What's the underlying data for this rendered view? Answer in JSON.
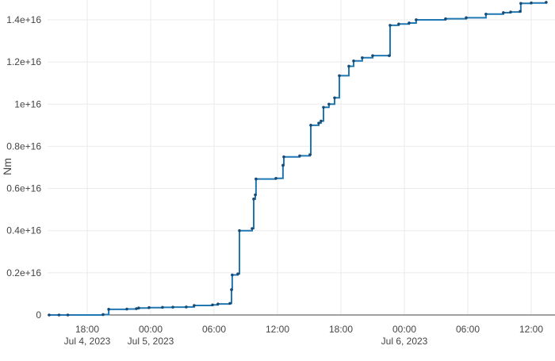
{
  "chart_data": {
    "type": "line",
    "title": "",
    "xlabel": "",
    "ylabel": "Nm",
    "xlim": [
      "2023-07-04T14:15",
      "2023-07-06T14:15"
    ],
    "ylim": [
      0,
      1.494e+16
    ],
    "grid": true,
    "line_shape": "step-after",
    "markers": true,
    "colors": {
      "line": "#1f77b4",
      "marker": "#1a4a72",
      "grid": "#ebebeb",
      "zero_line": "#444444"
    },
    "y_ticks": [
      {
        "value": 0,
        "label": "0"
      },
      {
        "value": 2000000000000000.0,
        "label": "0.2e+16"
      },
      {
        "value": 4000000000000000.0,
        "label": "0.4e+16"
      },
      {
        "value": 6000000000000000.0,
        "label": "0.6e+16"
      },
      {
        "value": 8000000000000000.0,
        "label": "0.8e+16"
      },
      {
        "value": 1e+16,
        "label": "1e+16"
      },
      {
        "value": 1.2e+16,
        "label": "1.2e+16"
      },
      {
        "value": 1.4e+16,
        "label": "1.4e+16"
      }
    ],
    "x_ticks": [
      {
        "value": "2023-07-04T18:00",
        "label": "18:00",
        "sublabel": "Jul 4, 2023"
      },
      {
        "value": "2023-07-05T00:00",
        "label": "00:00",
        "sublabel": "Jul 5, 2023"
      },
      {
        "value": "2023-07-05T06:00",
        "label": "06:00",
        "sublabel": ""
      },
      {
        "value": "2023-07-05T12:00",
        "label": "12:00",
        "sublabel": ""
      },
      {
        "value": "2023-07-05T18:00",
        "label": "18:00",
        "sublabel": ""
      },
      {
        "value": "2023-07-06T00:00",
        "label": "00:00",
        "sublabel": "Jul 6, 2023"
      },
      {
        "value": "2023-07-06T06:00",
        "label": "06:00",
        "sublabel": ""
      },
      {
        "value": "2023-07-06T12:00",
        "label": "12:00",
        "sublabel": ""
      }
    ],
    "series": [
      {
        "x": [
          "2023-07-04T14:24",
          "2023-07-04T15:20",
          "2023-07-04T16:10",
          "2023-07-04T19:30",
          "2023-07-04T20:02",
          "2023-07-04T21:45",
          "2023-07-04T22:39",
          "2023-07-04T22:52",
          "2023-07-04T23:51",
          "2023-07-05T01:07",
          "2023-07-05T02:06",
          "2023-07-05T03:22",
          "2023-07-05T04:07",
          "2023-07-05T05:51",
          "2023-07-05T06:22",
          "2023-07-05T07:30",
          "2023-07-05T07:39",
          "2023-07-05T07:43",
          "2023-07-05T08:15",
          "2023-07-05T08:24",
          "2023-07-05T09:36",
          "2023-07-05T09:45",
          "2023-07-05T09:54",
          "2023-07-05T09:58",
          "2023-07-05T11:51",
          "2023-07-05T12:31",
          "2023-07-05T12:36",
          "2023-07-05T14:06",
          "2023-07-05T15:04",
          "2023-07-05T15:09",
          "2023-07-05T15:54",
          "2023-07-05T16:07",
          "2023-07-05T16:21",
          "2023-07-05T16:52",
          "2023-07-05T17:24",
          "2023-07-05T17:51",
          "2023-07-05T18:45",
          "2023-07-05T19:12",
          "2023-07-05T20:01",
          "2023-07-05T21:00",
          "2023-07-05T22:34",
          "2023-07-05T22:39",
          "2023-07-05T23:28",
          "2023-07-06T00:27",
          "2023-07-06T01:07",
          "2023-07-06T03:54",
          "2023-07-06T05:51",
          "2023-07-06T07:43",
          "2023-07-06T09:22",
          "2023-07-06T10:03",
          "2023-07-06T10:57",
          "2023-07-06T11:01",
          "2023-07-06T12:00",
          "2023-07-06T13:25"
        ],
        "y": [
          0,
          0,
          0,
          20000000000000.0,
          270000000000000.0,
          280000000000000.0,
          300000000000000.0,
          330000000000000.0,
          350000000000000.0,
          360000000000000.0,
          370000000000000.0,
          380000000000000.0,
          450000000000000.0,
          480000000000000.0,
          520000000000000.0,
          550000000000000.0,
          1200000000000000.0,
          1900000000000000.0,
          1950000000000000.0,
          4000000000000000.0,
          4100000000000000.0,
          5500000000000000.0,
          5700000000000000.0,
          6450000000000000.0,
          6480000000000000.0,
          7100000000000000.0,
          7500000000000000.0,
          7550000000000000.0,
          7600000000000000.0,
          9000000000000000.0,
          9100000000000000.0,
          9200000000000000.0,
          9850000000000000.0,
          1e+16,
          1.03e+16,
          1.135e+16,
          1.18e+16,
          1.205e+16,
          1.22e+16,
          1.23e+16,
          1.23e+16,
          1.374e+16,
          1.38e+16,
          1.385e+16,
          1.4e+16,
          1.405e+16,
          1.41e+16,
          1.427e+16,
          1.434e+16,
          1.437e+16,
          1.44e+16,
          1.478e+16,
          1.48e+16,
          1.483e+16
        ]
      }
    ]
  }
}
